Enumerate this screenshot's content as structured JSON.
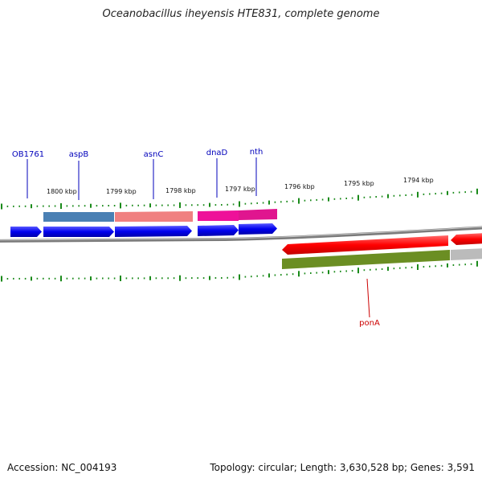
{
  "title": "Oceanobacillus iheyensis HTE831, complete genome",
  "footer": {
    "accession": "Accession: NC_004193",
    "topology": "Topology: circular; Length: 3,630,528 bp; Genes: 3,591"
  },
  "scale_labels": [
    "1800 kbp",
    "1799 kbp",
    "1798 kbp",
    "1797 kbp",
    "1796 kbp",
    "1795 kbp",
    "1794 kbp"
  ],
  "gene_labels": [
    "OB1761",
    "aspB",
    "asnC",
    "dnaD",
    "nth",
    "ponA"
  ],
  "colors": {
    "forward_cds": "#0000ee",
    "reverse_cds": "#ff0000",
    "gene_label_forward": "#0000bb",
    "gene_label_reverse": "#cc0000",
    "backbone": "#7a7a7a",
    "tick": "#1a8a1a",
    "aspB_band": "#4a80b4",
    "asnC_band": "#f08080",
    "dnaD_band": "#ee1199",
    "ponA_band": "#6b8e23",
    "gray_band": "#bbbbbb"
  }
}
